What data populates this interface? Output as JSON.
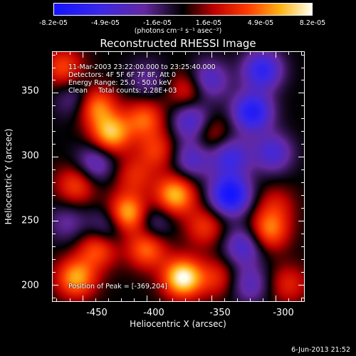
{
  "colorbar": {
    "tick_labels": [
      "-8.2e-05",
      "-4.9e-05",
      "-1.6e-05",
      "1.6e-05",
      "4.9e-05",
      "8.2e-05"
    ],
    "units": "(photons cm⁻² s⁻¹ asec⁻²)"
  },
  "title": "Reconstructed RHESSI Image",
  "annotations": {
    "time": "11-Mar-2003 23:22:00.000 to 23:25:40.000",
    "detectors": "Detectors: 4F 5F 6F 7F 8F, Att 0",
    "energy": "Energy Range: 25.0 - 50.0 keV",
    "clean": "Clean     Total counts: 2.28E+03",
    "peak": "Position of Peak = [-369,204]"
  },
  "axes": {
    "x_title": "Heliocentric X (arcsec)",
    "y_title": "Heliocentric Y (arcsec)",
    "x_ticks": [
      "-450",
      "-400",
      "-350",
      "-300"
    ],
    "y_ticks": [
      "350",
      "300",
      "250",
      "200"
    ]
  },
  "timestamp": "6-Jun-2013 21:52",
  "chart_data": {
    "type": "heatmap",
    "title": "Reconstructed RHESSI Image",
    "xlabel": "Heliocentric X (arcsec)",
    "ylabel": "Heliocentric Y (arcsec)",
    "xlim": [
      -473,
      -278
    ],
    "ylim": [
      187,
      382
    ],
    "colorbar_range": [
      -8.2e-05,
      8.2e-05
    ],
    "peak_position": [
      -369,
      204
    ],
    "blobs": [
      {
        "x": -372,
        "y": 205,
        "value": 8.2e-05
      },
      {
        "x": -415,
        "y": 255,
        "value": 7e-05
      },
      {
        "x": -428,
        "y": 318,
        "value": 6.5e-05
      },
      {
        "x": -440,
        "y": 340,
        "value": 5.5e-05
      },
      {
        "x": -455,
        "y": 205,
        "value": 6e-05
      },
      {
        "x": -378,
        "y": 270,
        "value": 6.5e-05
      },
      {
        "x": -402,
        "y": 330,
        "value": 4.5e-05
      },
      {
        "x": -368,
        "y": 352,
        "value": 3.5e-05
      },
      {
        "x": -455,
        "y": 278,
        "value": 4e-05
      },
      {
        "x": -438,
        "y": 228,
        "value": 4.5e-05
      },
      {
        "x": -400,
        "y": 228,
        "value": 5e-05
      },
      {
        "x": -392,
        "y": 305,
        "value": 3.5e-05
      },
      {
        "x": -350,
        "y": 318,
        "value": 3e-05
      },
      {
        "x": -355,
        "y": 245,
        "value": 3.5e-05
      },
      {
        "x": -345,
        "y": 205,
        "value": 3e-05
      },
      {
        "x": -305,
        "y": 242,
        "value": 5e-05
      },
      {
        "x": -290,
        "y": 200,
        "value": 3e-05
      },
      {
        "x": -300,
        "y": 262,
        "value": 2.5e-05
      },
      {
        "x": -465,
        "y": 370,
        "value": 4e-05
      },
      {
        "x": -410,
        "y": 285,
        "value": 3e-05
      },
      {
        "x": -440,
        "y": 295,
        "value": -4e-05
      },
      {
        "x": -430,
        "y": 245,
        "value": -3.5e-05
      },
      {
        "x": -365,
        "y": 328,
        "value": -5e-05
      },
      {
        "x": -365,
        "y": 298,
        "value": -4e-05
      },
      {
        "x": -335,
        "y": 270,
        "value": -8.2e-05
      },
      {
        "x": -318,
        "y": 335,
        "value": -7e-05
      },
      {
        "x": -310,
        "y": 368,
        "value": -6e-05
      },
      {
        "x": -335,
        "y": 300,
        "value": -5e-05
      },
      {
        "x": -302,
        "y": 303,
        "value": -4.5e-05
      },
      {
        "x": -325,
        "y": 230,
        "value": -4.5e-05
      },
      {
        "x": -320,
        "y": 200,
        "value": -3.5e-05
      },
      {
        "x": -455,
        "y": 345,
        "value": -3e-05
      },
      {
        "x": -395,
        "y": 248,
        "value": -3e-05
      },
      {
        "x": -352,
        "y": 360,
        "value": -4.5e-05
      },
      {
        "x": -400,
        "y": 360,
        "value": -2.5e-05
      },
      {
        "x": -462,
        "y": 248,
        "value": -2.5e-05
      }
    ]
  }
}
